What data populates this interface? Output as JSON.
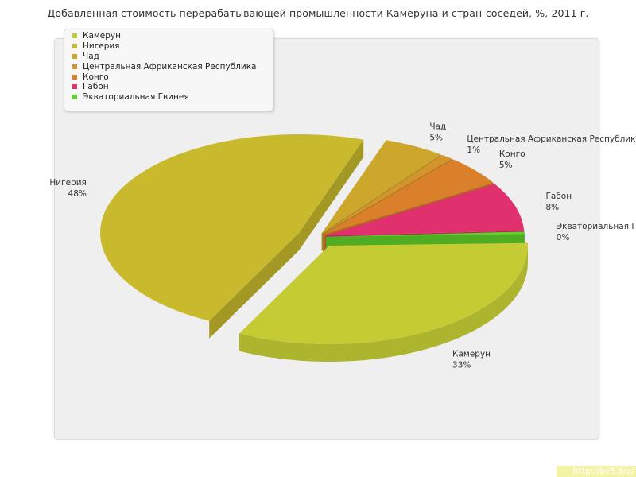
{
  "chart_data": {
    "type": "pie",
    "title": "Добавленная стоимость перерабатывающей промышленности Камеруна и стран-соседей, %, 2011 г.",
    "slices": [
      {
        "name": "Камерун",
        "value": 33,
        "label_value": "33%",
        "color": "#c5cc33"
      },
      {
        "name": "Нигерия",
        "value": 48,
        "label_value": "48%",
        "color": "#c8b92d"
      },
      {
        "name": "Чад",
        "value": 5,
        "label_value": "5%",
        "color": "#cca72c"
      },
      {
        "name": "Центральная Африканская Республика",
        "value": 1,
        "label_value": "1%",
        "color": "#d3952b"
      },
      {
        "name": "Конго",
        "value": 5,
        "label_value": "5%",
        "color": "#da7f2a"
      },
      {
        "name": "Габон",
        "value": 8,
        "label_value": "8%",
        "color": "#e0306e"
      },
      {
        "name": "Экваториальная Гвинея",
        "value": 0.4,
        "label_value": "0%",
        "color": "#5fd32b"
      }
    ],
    "legend_placement": "top-left"
  },
  "watermark": "http://be5.biz/"
}
